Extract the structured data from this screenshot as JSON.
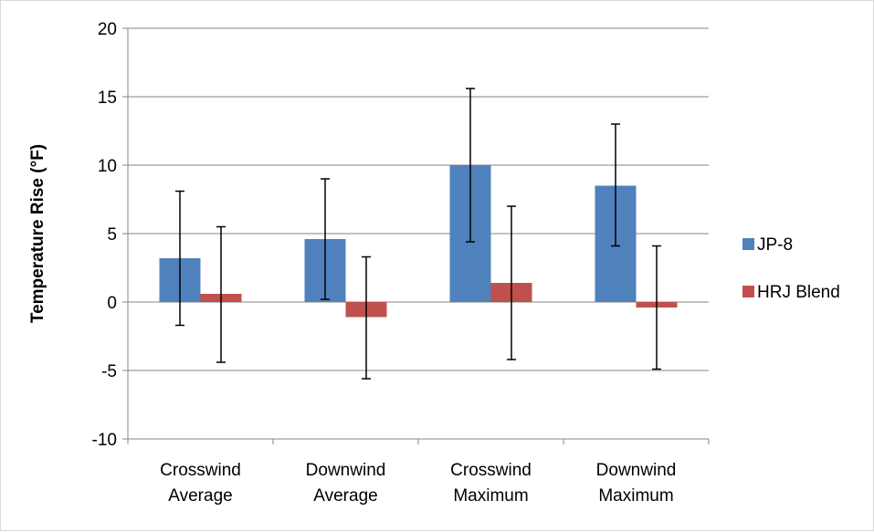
{
  "chart_data": {
    "type": "bar",
    "title": "",
    "xlabel": "",
    "ylabel": "Temperature Rise (°F)",
    "ylim": [
      -10,
      20
    ],
    "yticks": [
      -10,
      -5,
      0,
      5,
      10,
      15,
      20
    ],
    "grid": true,
    "legend_position": "right",
    "categories": [
      [
        "Crosswind",
        "Average"
      ],
      [
        "Downwind",
        "Average"
      ],
      [
        "Crosswind",
        "Maximum"
      ],
      [
        "Downwind",
        "Maximum"
      ]
    ],
    "series": [
      {
        "name": "JP-8",
        "color": "#4f81bd",
        "values": [
          3.2,
          4.6,
          10.0,
          8.5
        ],
        "error_low": [
          -1.7,
          0.2,
          4.4,
          4.1
        ],
        "error_high": [
          8.1,
          9.0,
          15.6,
          13.0
        ]
      },
      {
        "name": "HRJ Blend",
        "color": "#c0504d",
        "values": [
          0.6,
          -1.1,
          1.4,
          -0.4
        ],
        "error_low": [
          -4.4,
          -5.6,
          -4.2,
          -4.9
        ],
        "error_high": [
          5.5,
          3.3,
          7.0,
          4.1
        ]
      }
    ]
  }
}
